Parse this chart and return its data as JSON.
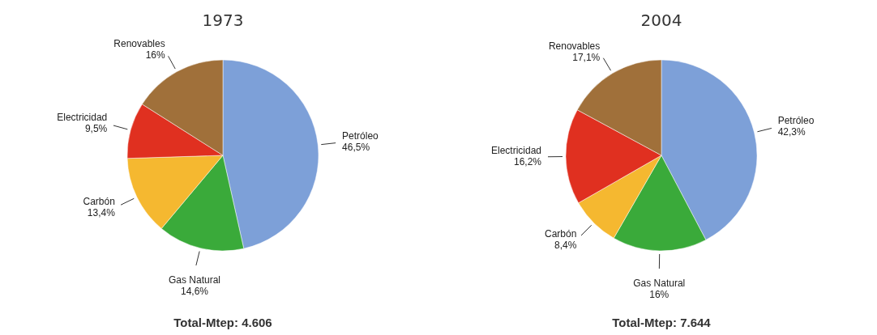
{
  "chart_data": [
    {
      "type": "pie",
      "title": "1973",
      "categories": [
        "Petróleo",
        "Gas Natural",
        "Carbón",
        "Electricidad",
        "Renovables"
      ],
      "values": [
        46.5,
        14.6,
        13.4,
        9.5,
        16
      ],
      "value_labels": [
        "46,5%",
        "14,6%",
        "13,4%",
        "9,5%",
        "16%"
      ],
      "colors": [
        "#7da0d8",
        "#3aaa3a",
        "#f5b830",
        "#e03020",
        "#a0703a"
      ],
      "annotations": [
        "Total-Mtep: 4.606"
      ]
    },
    {
      "type": "pie",
      "title": "2004",
      "categories": [
        "Petróleo",
        "Gas Natural",
        "Carbón",
        "Electricidad",
        "Renovables"
      ],
      "values": [
        42.3,
        16,
        8.4,
        16.2,
        17.1
      ],
      "value_labels": [
        "42,3%",
        "16%",
        "8,4%",
        "16,2%",
        "17,1%"
      ],
      "colors": [
        "#7da0d8",
        "#3aaa3a",
        "#f5b830",
        "#e03020",
        "#a0703a"
      ],
      "annotations": [
        "Total-Mtep: 7.644"
      ]
    }
  ]
}
